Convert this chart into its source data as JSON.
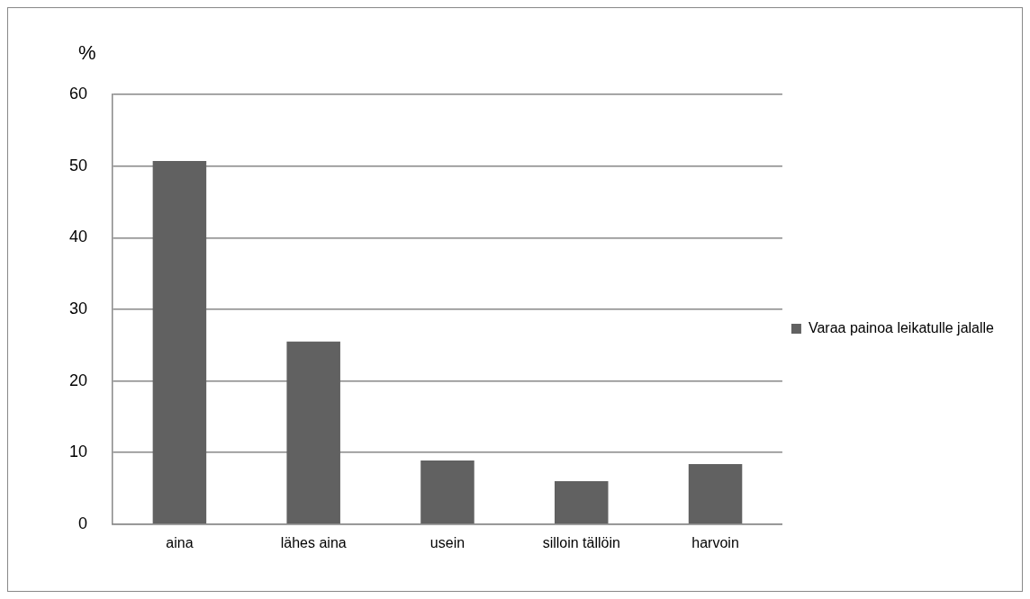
{
  "chart_data": {
    "type": "bar",
    "ylabel": "%",
    "categories": [
      "aina",
      "lähes aina",
      "usein",
      "silloin tällöin",
      "harvoin"
    ],
    "series": [
      {
        "name": "Varaa painoa leikatulle jalalle",
        "color": "#616161",
        "values": [
          50.7,
          25.5,
          8.9,
          6.0,
          8.4
        ]
      }
    ],
    "ylim": [
      0,
      60
    ],
    "yticks": [
      0,
      10,
      20,
      30,
      40,
      50,
      60
    ],
    "grid": "y",
    "legend": "right"
  }
}
